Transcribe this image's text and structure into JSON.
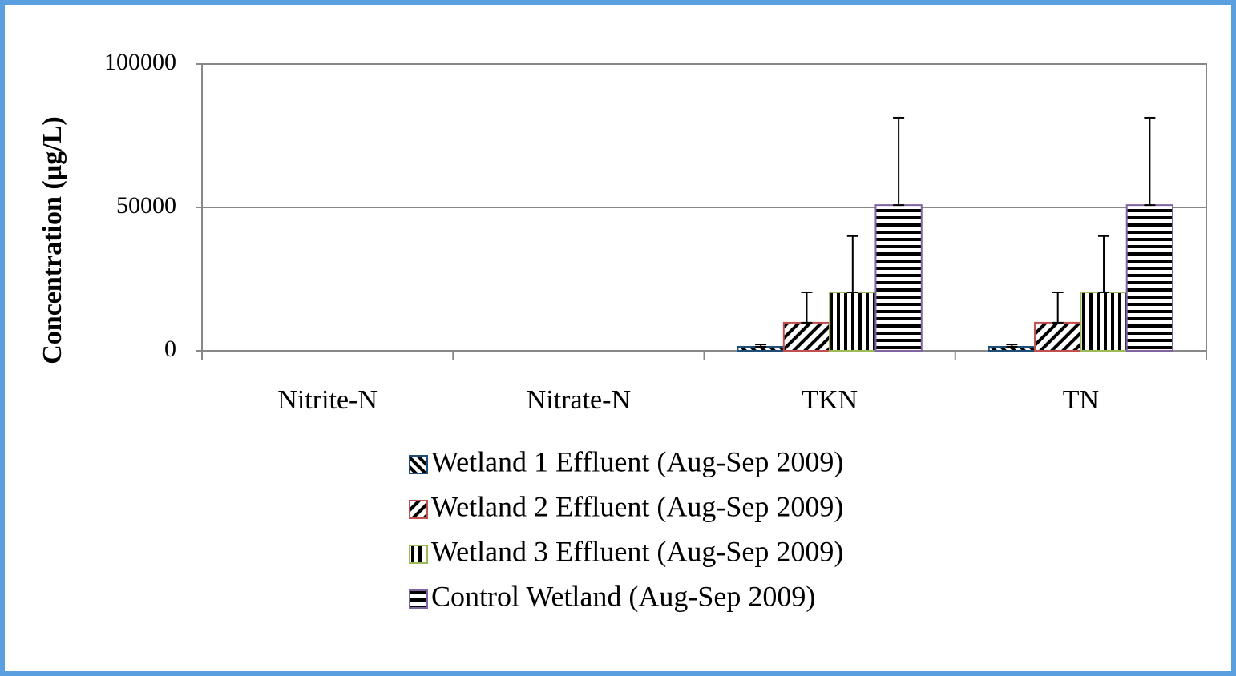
{
  "chart_data": {
    "type": "bar",
    "y_label": "Concentration (µg/L)",
    "categories": [
      "Nitrite-N",
      "Nitrate-N",
      "TKN",
      "TN"
    ],
    "series": [
      {
        "name": "Wetland 1 Effluent (Aug-Sep 2009)",
        "color": "#1f4e79",
        "pattern": "diagonal-back",
        "values": [
          0,
          0,
          1400,
          1400
        ],
        "errors": [
          0,
          0,
          800,
          800
        ]
      },
      {
        "name": "Wetland 2 Effluent (Aug-Sep 2009)",
        "color": "#c0504d",
        "pattern": "diagonal-forward",
        "values": [
          0,
          0,
          9800,
          9800
        ],
        "errors": [
          0,
          0,
          10600,
          10600
        ]
      },
      {
        "name": "Wetland 3 Effluent (Aug-Sep 2009)",
        "color": "#9bbb59",
        "pattern": "vertical",
        "values": [
          0,
          0,
          20400,
          20400
        ],
        "errors": [
          0,
          0,
          19600,
          19600
        ]
      },
      {
        "name": "Control Wetland (Aug-Sep 2009)",
        "color": "#8064a2",
        "pattern": "horizontal",
        "values": [
          0,
          0,
          50800,
          50800
        ],
        "errors": [
          0,
          0,
          30500,
          30500
        ]
      }
    ],
    "ylim": [
      0,
      100000
    ],
    "yticks": [
      0,
      50000,
      100000
    ],
    "grid": true,
    "legend": "bottom"
  }
}
